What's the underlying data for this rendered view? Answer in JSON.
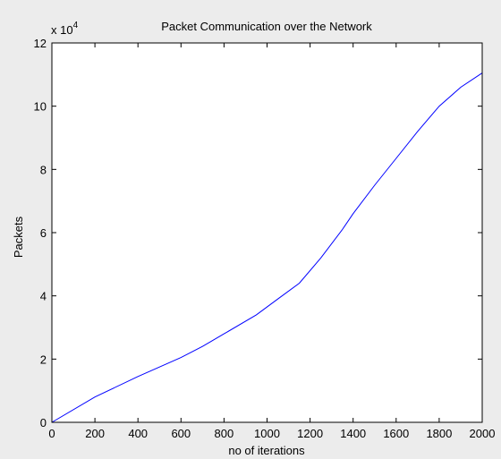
{
  "chart_data": {
    "type": "line",
    "title": "Packet Communication over the Network",
    "xlabel": "no of iterations",
    "ylabel": "Packets",
    "y_scale_factor_label": {
      "base": "x 10",
      "exponent": "4"
    },
    "xlim": [
      0,
      2000
    ],
    "ylim": [
      0,
      12
    ],
    "x_ticks": [
      0,
      200,
      400,
      600,
      800,
      1000,
      1200,
      1400,
      1600,
      1800,
      2000
    ],
    "x_tick_labels": [
      "0",
      "200",
      "400",
      "600",
      "800",
      "1000",
      "1200",
      "1400",
      "1600",
      "1800",
      "2000"
    ],
    "y_ticks": [
      0,
      2,
      4,
      6,
      8,
      10,
      12
    ],
    "y_tick_labels": [
      "0",
      "2",
      "4",
      "6",
      "8",
      "10",
      "12"
    ],
    "grid": false,
    "series": [
      {
        "x": [
          0,
          200,
          400,
          600,
          700,
          800,
          950,
          1050,
          1150,
          1250,
          1350,
          1400,
          1500,
          1600,
          1700,
          1800,
          1900,
          2000
        ],
        "y": [
          0,
          0.8,
          1.45,
          2.05,
          2.4,
          2.8,
          3.4,
          3.9,
          4.4,
          5.2,
          6.1,
          6.6,
          7.5,
          8.35,
          9.2,
          10.0,
          10.6,
          11.05
        ],
        "color": "#0000ff"
      }
    ]
  },
  "colors": {
    "background": "#ececec",
    "plot_area": "#ffffff",
    "axes": "#000000",
    "line": "#0000ff"
  }
}
